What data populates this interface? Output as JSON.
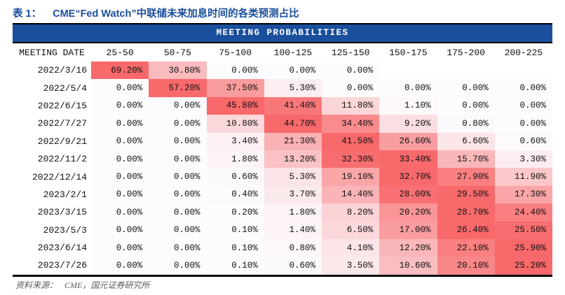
{
  "caption": {
    "prefix": "表 1：",
    "text": "CME“Fed Watch”中联储未来加息时间的各类预测占比"
  },
  "footer": {
    "label": "资料来源：",
    "text": "CME，国元证券研究所"
  },
  "colors": {
    "title_blue": "#1A4F9D",
    "band_bg": "#1A4F9D",
    "band_text": "#FFFFFF",
    "border_black": "#000000",
    "footer_gray": "#595959"
  },
  "chart_data": {
    "type": "heatmap",
    "title": "CME“Fed Watch”中联储未来加息时间的各类预测占比",
    "band_title": "MEETING PROBABILITIES",
    "row_label_header": "MEETING DATE",
    "columns": [
      "25-50",
      "50-75",
      "75-100",
      "100-125",
      "125-150",
      "150-175",
      "175-200",
      "200-225"
    ],
    "value_format": "percent_2dp",
    "color_scale": {
      "min_color": "#FCFCFF",
      "max_color": "#F8696B",
      "normalize": "per-row"
    },
    "rows": [
      {
        "date": "2022/3/16",
        "values": [
          69.2,
          30.8,
          0.0,
          0.0,
          0.0,
          null,
          null,
          null
        ]
      },
      {
        "date": "2022/5/4",
        "values": [
          0.0,
          57.2,
          37.5,
          5.3,
          0.0,
          0.0,
          0.0,
          0.0
        ]
      },
      {
        "date": "2022/6/15",
        "values": [
          0.0,
          0.0,
          45.8,
          41.4,
          11.8,
          1.1,
          0.0,
          0.0
        ]
      },
      {
        "date": "2022/7/27",
        "values": [
          0.0,
          0.0,
          10.8,
          44.7,
          34.4,
          9.2,
          0.8,
          0.0
        ]
      },
      {
        "date": "2022/9/21",
        "values": [
          0.0,
          0.0,
          3.4,
          21.3,
          41.5,
          26.6,
          6.6,
          0.6
        ]
      },
      {
        "date": "2022/11/2",
        "values": [
          0.0,
          0.0,
          1.8,
          13.2,
          32.3,
          33.4,
          15.7,
          3.3
        ]
      },
      {
        "date": "2022/12/14",
        "values": [
          0.0,
          0.0,
          0.6,
          5.3,
          19.1,
          32.7,
          27.9,
          11.9
        ]
      },
      {
        "date": "2023/2/1",
        "values": [
          0.0,
          0.0,
          0.4,
          3.7,
          14.4,
          28.0,
          29.5,
          17.3
        ]
      },
      {
        "date": "2023/3/15",
        "values": [
          0.0,
          0.0,
          0.2,
          1.8,
          8.2,
          20.2,
          28.7,
          24.4
        ]
      },
      {
        "date": "2023/5/3",
        "values": [
          0.0,
          0.0,
          0.1,
          1.4,
          6.5,
          17.0,
          26.4,
          25.5
        ]
      },
      {
        "date": "2023/6/14",
        "values": [
          0.0,
          0.0,
          0.1,
          0.8,
          4.1,
          12.2,
          22.1,
          25.9
        ]
      },
      {
        "date": "2023/7/26",
        "values": [
          0.0,
          0.0,
          0.1,
          0.6,
          3.5,
          10.6,
          20.1,
          25.2
        ]
      }
    ]
  }
}
